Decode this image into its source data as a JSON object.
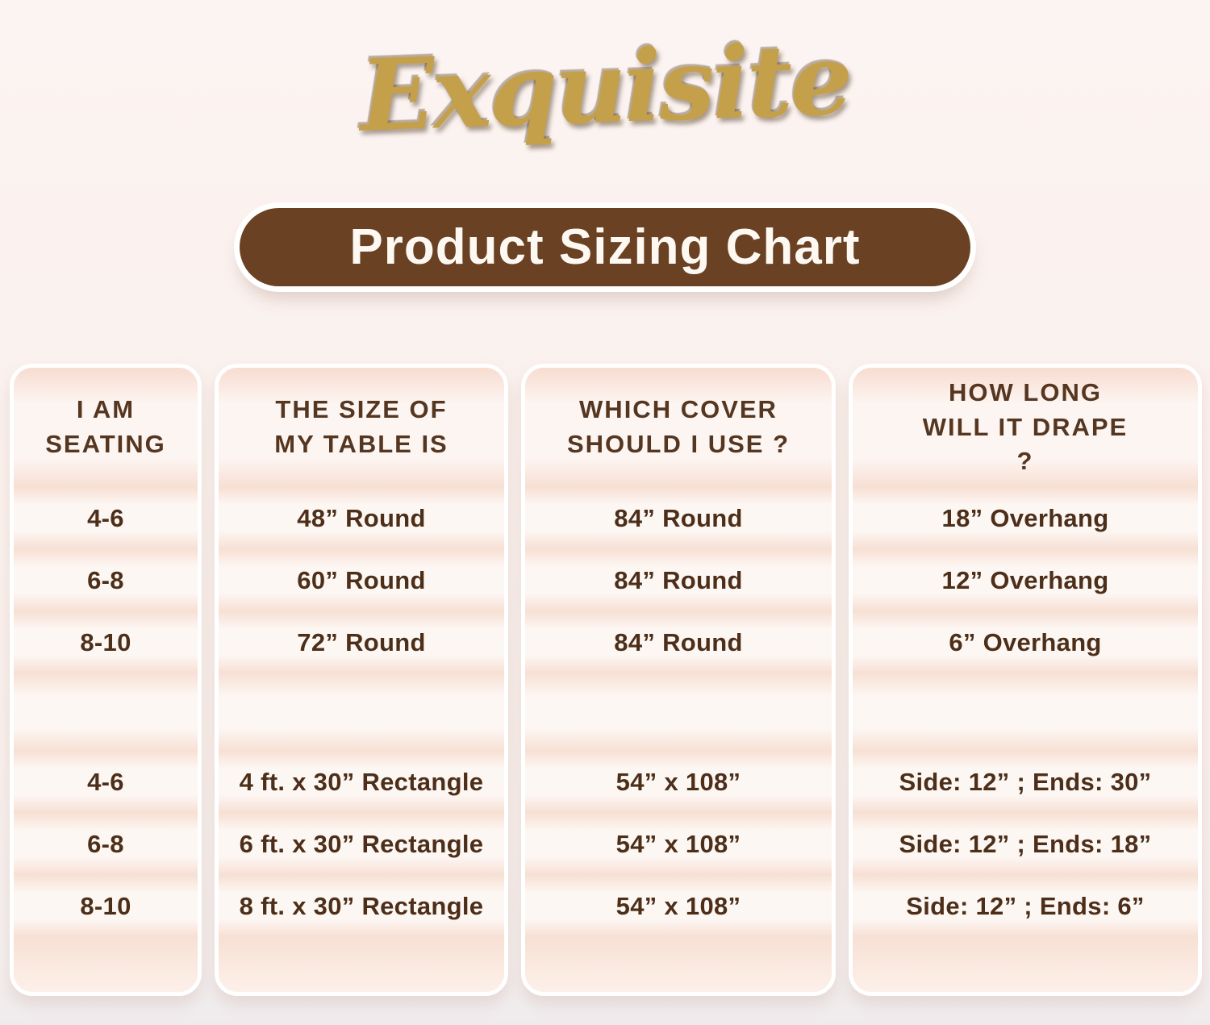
{
  "brand": {
    "logo_text": "Exquisite",
    "logo_color": "#c5a04a"
  },
  "banner": {
    "title": "Product Sizing Chart",
    "bg_color": "#6a4123",
    "text_color": "#fdf8f2"
  },
  "chart_data": {
    "type": "table",
    "title": "Product Sizing Chart",
    "columns": [
      "I AM SEATING",
      "THE SIZE OF MY TABLE IS",
      "WHICH COVER SHOULD I USE ?",
      "HOW LONG WILL IT DRAPE ?"
    ],
    "rows": [
      [
        "4-6",
        "48” Round",
        "84” Round",
        "18” Overhang"
      ],
      [
        "6-8",
        "60” Round",
        "84” Round",
        "12” Overhang"
      ],
      [
        "8-10",
        "72” Round",
        "84” Round",
        "6” Overhang"
      ],
      [
        "",
        "",
        "",
        ""
      ],
      [
        "4-6",
        "4 ft. x 30” Rectangle",
        "54” x 108”",
        "Side: 12” ; Ends: 30”"
      ],
      [
        "6-8",
        "6 ft. x 30” Rectangle",
        "54” x 108”",
        "Side: 12” ; Ends: 18”"
      ],
      [
        "8-10",
        "8 ft. x 30” Rectangle",
        "54” x 108”",
        "Side: 12” ; Ends: 6”"
      ]
    ],
    "layout": {
      "legend_position": "none",
      "grid": "soft horizontal row bands",
      "column_card_style": "rounded peach cards on pink background"
    }
  },
  "colors": {
    "page_bg_top": "#fcf4f2",
    "page_bg_bottom": "#efebed",
    "card_light_band": "#fdf7f4",
    "card_peach_band": "#f7e0d4",
    "header_text": "#553620",
    "cell_text": "#4d2f19"
  }
}
